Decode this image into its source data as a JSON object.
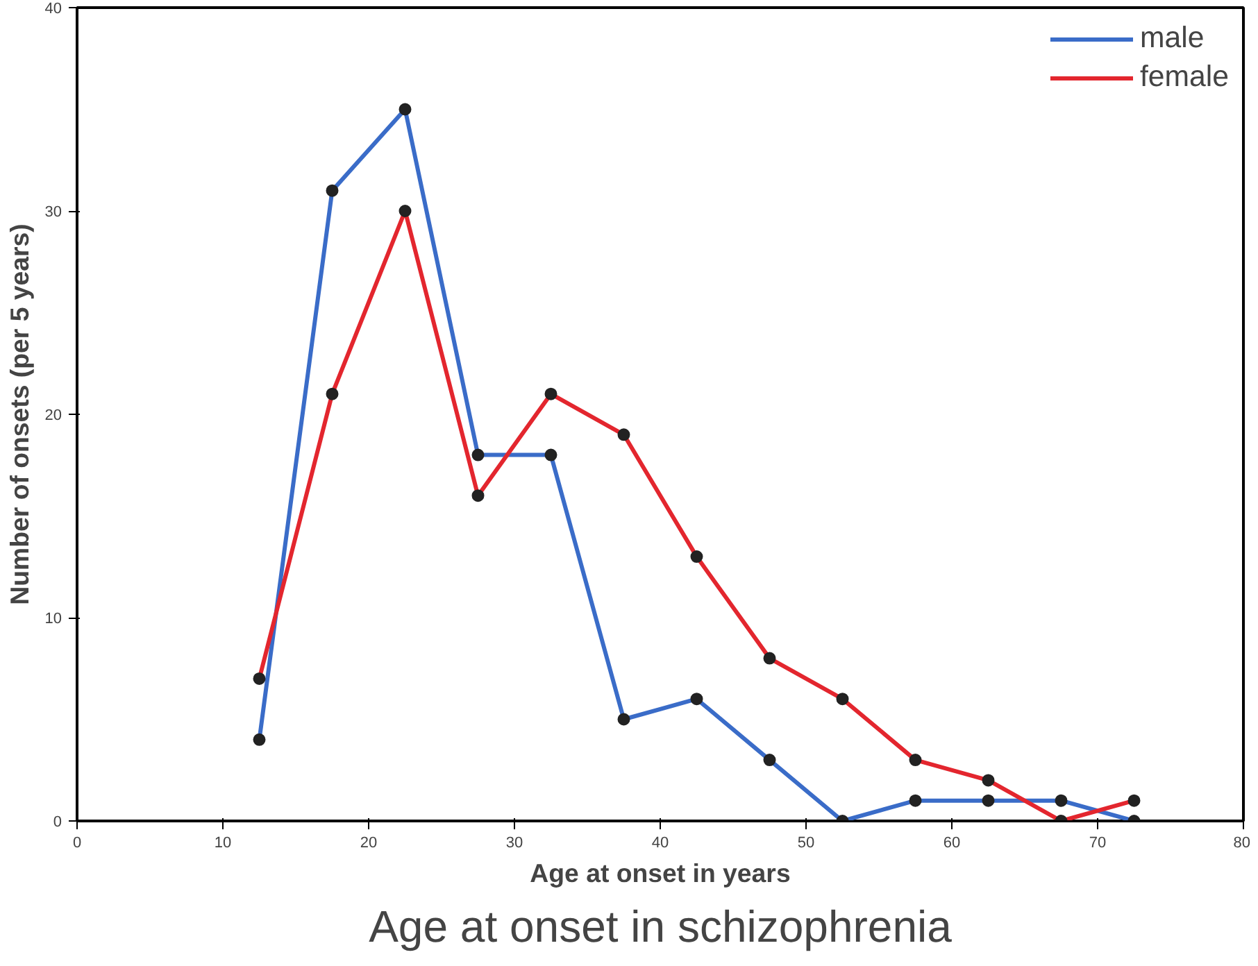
{
  "chart_data": {
    "type": "line",
    "title": "Age at onset in schizophrenia",
    "xlabel": "Age at onset in years",
    "ylabel": "Number of onsets (per 5 years)",
    "x": [
      12.5,
      17.5,
      22.5,
      27.5,
      32.5,
      37.5,
      42.5,
      47.5,
      52.5,
      57.5,
      62.5,
      67.5,
      72.5
    ],
    "series": [
      {
        "name": "male",
        "color": "#3a6cc8",
        "values": [
          4,
          31,
          35,
          18,
          18,
          5,
          6,
          3,
          0,
          1,
          1,
          1,
          0
        ]
      },
      {
        "name": "female",
        "color": "#e3262e",
        "values": [
          7,
          21,
          30,
          16,
          21,
          19,
          13,
          8,
          6,
          3,
          2,
          0,
          1
        ]
      }
    ],
    "xlim": [
      0,
      80
    ],
    "xticks": [
      0,
      10,
      20,
      30,
      40,
      50,
      60,
      70,
      80
    ],
    "ylim": [
      0,
      40
    ],
    "yticks": [
      0,
      10,
      20,
      30,
      40
    ],
    "marker": "circle",
    "legend": "top right",
    "grid": false
  }
}
